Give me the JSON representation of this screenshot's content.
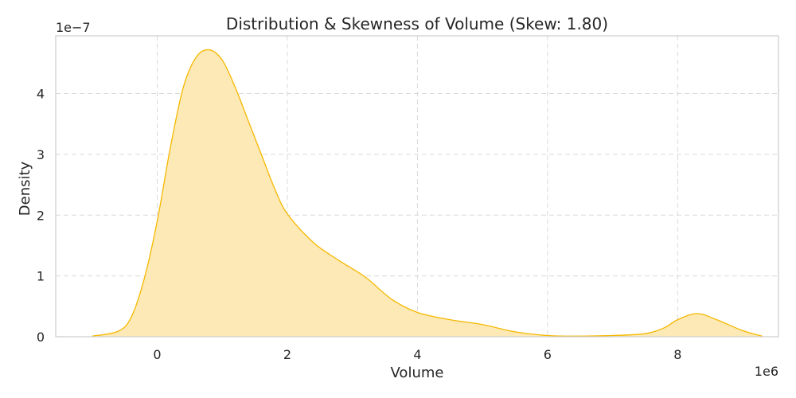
{
  "chart_data": {
    "type": "area",
    "title": "Distribution & Skewness of Volume (Skew: 1.80)",
    "xlabel": "Volume",
    "ylabel": "Density",
    "x_offset_label": "1e6",
    "y_offset_label": "1e−7",
    "xlim": [
      -1560000,
      9550000
    ],
    "ylim": [
      0,
      4.95e-07
    ],
    "xticks": [
      0,
      2000000,
      4000000,
      6000000,
      8000000
    ],
    "xtick_labels": [
      "0",
      "2",
      "4",
      "6",
      "8"
    ],
    "yticks": [
      0,
      1e-07,
      2e-07,
      3e-07,
      4e-07
    ],
    "ytick_labels": [
      "0",
      "1",
      "2",
      "3",
      "4"
    ],
    "grid": true,
    "colors": {
      "line": "#f5b800",
      "fill": "#fde9b6"
    },
    "series": [
      {
        "x": [
          -1000000,
          -600000,
          -400000,
          -200000,
          0,
          200000,
          400000,
          600000,
          800000,
          1000000,
          1200000,
          1400000,
          1600000,
          1800000,
          2000000,
          2400000,
          2800000,
          3200000,
          3600000,
          4000000,
          4500000,
          5000000,
          5500000,
          6000000,
          6500000,
          7000000,
          7500000,
          7800000,
          8000000,
          8300000,
          8600000,
          9000000,
          9300000
        ],
        "y": [
          1e-09,
          9e-09,
          3.2e-08,
          9.5e-08,
          1.9e-07,
          3.1e-07,
          4.1e-07,
          4.6e-07,
          4.72e-07,
          4.55e-07,
          4.1e-07,
          3.55e-07,
          3e-07,
          2.45e-07,
          2.02e-07,
          1.55e-07,
          1.25e-07,
          9.8e-08,
          6.2e-08,
          4e-08,
          2.8e-08,
          2e-08,
          8e-09,
          2e-09,
          1e-09,
          2e-09,
          5e-09,
          1.5e-08,
          2.8e-08,
          3.8e-08,
          2.8e-08,
          1e-08,
          1e-09
        ]
      }
    ]
  }
}
